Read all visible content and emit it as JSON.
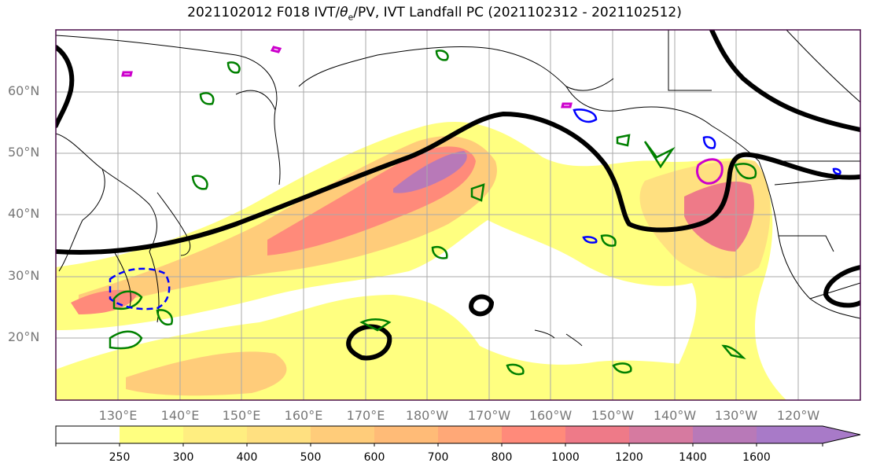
{
  "title": "2021102012 F018 IVT/θe/PV, IVT Landfall PC (2021102312 - 2021102512)",
  "title_parts": {
    "pre": "2021102012 F018 IVT/",
    "theta": "θ",
    "sub": "e",
    "post": "/PV, IVT Landfall PC (2021102312 - 2021102512)"
  },
  "map": {
    "lat_labels": [
      "60°N",
      "50°N",
      "40°N",
      "30°N",
      "20°N"
    ],
    "lon_labels": [
      "130°E",
      "140°E",
      "150°E",
      "160°E",
      "170°E",
      "180°W",
      "170°W",
      "160°W",
      "150°W",
      "140°W",
      "130°W",
      "120°W"
    ],
    "colors": {
      "coast": "#000000",
      "theta_e_contour": "#000000",
      "pv_positive": "#008000",
      "pv_negative": "#0000ff",
      "landfall_pc": "#cc00cc",
      "gridline": "#aaaaaa",
      "frame": "#4b0f4b"
    }
  },
  "colorbar": {
    "levels": [
      "250",
      "300",
      "400",
      "500",
      "600",
      "700",
      "800",
      "1000",
      "1200",
      "1400",
      "1600"
    ],
    "colors": [
      "#ffffff",
      "#ffff80",
      "#ffee80",
      "#ffe080",
      "#ffcc7a",
      "#ffbb77",
      "#ffa877",
      "#ff8a7a",
      "#ee7a88",
      "#d67aa0",
      "#b879b8",
      "#a87ac8"
    ]
  },
  "chart_data": {
    "type": "heatmap",
    "title": "2021102012 F018 IVT/θe/PV, IVT Landfall PC (2021102312 - 2021102512)",
    "variable_levels_IVT": [
      250,
      300,
      400,
      500,
      600,
      700,
      800,
      1000,
      1200,
      1400,
      1600
    ],
    "x_ticks": [
      "130°E",
      "140°E",
      "150°E",
      "160°E",
      "170°E",
      "180°W",
      "170°W",
      "160°W",
      "150°W",
      "140°W",
      "130°W",
      "120°W"
    ],
    "y_ticks": [
      "60°N",
      "50°N",
      "40°N",
      "30°N",
      "20°N"
    ],
    "lon_range": [
      120,
      250
    ],
    "lat_range": [
      10,
      70
    ],
    "grid": true
  }
}
